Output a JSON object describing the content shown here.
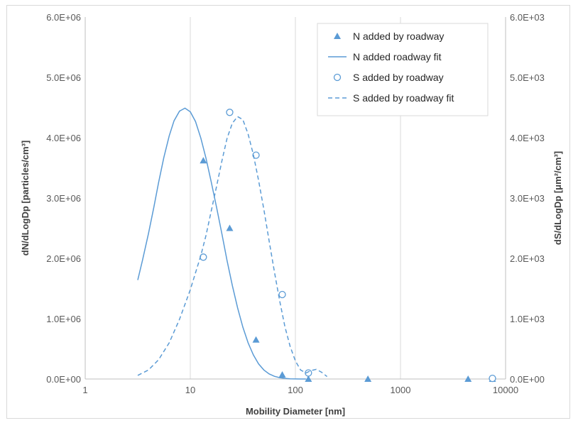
{
  "chart_data": {
    "type": "scatter",
    "title": "",
    "xlabel": "Mobility Diameter [nm]",
    "ylabel_left": "dN/dLogDp [particles/cm³]",
    "ylabel_right": "dS/dLogDp [μm²/cm³]",
    "x_scale": "log",
    "xlim": [
      1,
      10000
    ],
    "ylim_left": [
      0,
      6000000
    ],
    "ylim_right": [
      0,
      6000
    ],
    "x_ticks": [
      "1",
      "10",
      "100",
      "1000",
      "10000"
    ],
    "y_ticks_left": [
      "0.0E+00",
      "1.0E+06",
      "2.0E+06",
      "3.0E+06",
      "4.0E+06",
      "5.0E+06",
      "6.0E+06"
    ],
    "y_ticks_right": [
      "0.0E+00",
      "1.0E+03",
      "2.0E+03",
      "3.0E+03",
      "4.0E+03",
      "5.0E+03",
      "6.0E+03"
    ],
    "grid": "vertical",
    "legend_position": "top-right",
    "colors": {
      "series": "#5b9bd5",
      "grid": "#d9d9d9",
      "axis": "#bfbfbf"
    },
    "series": [
      {
        "name": "N added by roadway",
        "axis": "left",
        "style": "triangle-marker",
        "x": [
          13.3,
          23.7,
          42.2,
          75.0,
          133,
          490,
          4400,
          7500
        ],
        "y": [
          3620000,
          2500000,
          650000,
          70000,
          0,
          0,
          0,
          0
        ]
      },
      {
        "name": "N added roadway fit",
        "axis": "left",
        "style": "solid-line",
        "x": [
          3.16,
          3.5,
          4,
          4.5,
          5,
          5.6,
          6.3,
          7,
          7.9,
          8.9,
          10,
          11.2,
          12.6,
          14.1,
          15.8,
          17.8,
          20,
          22.4,
          25.1,
          28.2,
          31.6,
          35.5,
          39.8,
          44.7,
          50.1,
          56.2,
          63.1,
          70.8,
          79.4,
          89.1,
          100,
          112,
          126
        ],
        "y": [
          1640000,
          1960000,
          2410000,
          2850000,
          3260000,
          3670000,
          4030000,
          4280000,
          4440000,
          4490000,
          4430000,
          4270000,
          3990000,
          3660000,
          3270000,
          2840000,
          2400000,
          1960000,
          1550000,
          1180000,
          860000,
          600000,
          400000,
          250000,
          150000,
          85000,
          45000,
          22000,
          10000,
          4000,
          1500,
          500,
          0
        ]
      },
      {
        "name": "S added by roadway",
        "axis": "right",
        "style": "circle-marker",
        "x": [
          13.3,
          23.7,
          42.2,
          75.0,
          133,
          7500
        ],
        "y": [
          2020,
          4420,
          3710,
          1400,
          100,
          10
        ]
      },
      {
        "name": "S added by roadway fit",
        "axis": "right",
        "style": "dashed-line",
        "x": [
          3.16,
          4,
          5,
          6.3,
          7.9,
          10,
          12.6,
          14.1,
          15.8,
          17.8,
          20,
          22.4,
          25.1,
          28.2,
          31.6,
          35.5,
          39.8,
          44.7,
          50.1,
          56.2,
          63.1,
          70.8,
          79.4,
          89.1,
          100,
          112,
          126,
          141,
          158,
          178,
          200
        ],
        "y": [
          60,
          150,
          320,
          600,
          990,
          1480,
          2050,
          2380,
          2780,
          3200,
          3620,
          3990,
          4240,
          4350,
          4300,
          4060,
          3720,
          3290,
          2810,
          2290,
          1780,
          1300,
          870,
          540,
          300,
          150,
          100,
          140,
          160,
          110,
          40
        ]
      }
    ]
  }
}
